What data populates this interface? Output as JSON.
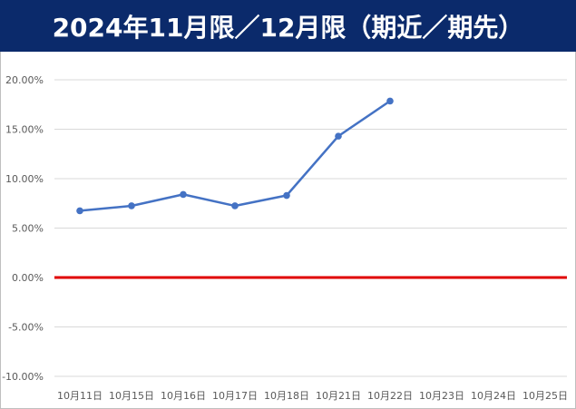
{
  "title": "2024年11月限／12月限（期近／期先）",
  "colors": {
    "title_bg": "#0b2a6b",
    "title_text": "#ffffff",
    "series_line": "#4472c4",
    "zero_line": "#e00000",
    "grid": "#d9d9d9",
    "tick_text": "#595959"
  },
  "chart_data": {
    "type": "line",
    "title": "2024年11月限／12月限（期近／期先）",
    "xlabel": "",
    "ylabel": "",
    "categories": [
      "10月11日",
      "10月15日",
      "10月16日",
      "10月17日",
      "10月18日",
      "10月21日",
      "10月22日",
      "10月23日",
      "10月24日",
      "10月25日"
    ],
    "series": [
      {
        "values": [
          0.0675,
          0.0725,
          0.084,
          0.0725,
          0.083,
          0.143,
          0.1785,
          null,
          null,
          null
        ]
      }
    ],
    "ylim": [
      -0.1,
      0.2
    ],
    "yticks": [
      -0.1,
      -0.05,
      0.0,
      0.05,
      0.1,
      0.15,
      0.2
    ],
    "ytick_labels": [
      "-10.00%",
      "-5.00%",
      "0.00%",
      "5.00%",
      "10.00%",
      "15.00%",
      "20.00%"
    ],
    "reference_line": {
      "y": 0.0,
      "color": "#e00000"
    },
    "grid": true,
    "legend": "none"
  }
}
